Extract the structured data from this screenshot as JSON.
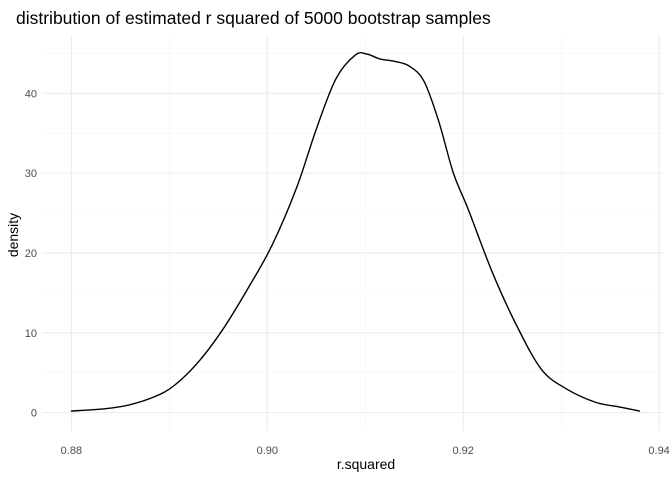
{
  "chart_data": {
    "type": "line",
    "title": "distribution of estimated r squared of 5000 bootstrap samples",
    "xlabel": "r.squared",
    "ylabel": "density",
    "xlim": [
      0.877,
      0.9405
    ],
    "ylim": [
      -2.3,
      47.3
    ],
    "x_ticks": [
      0.88,
      0.9,
      0.92,
      0.94
    ],
    "x_tick_labels": [
      "0.88",
      "0.90",
      "0.92",
      "0.94"
    ],
    "y_ticks": [
      0,
      10,
      20,
      30,
      40
    ],
    "y_tick_labels": [
      "0",
      "10",
      "20",
      "30",
      "40"
    ],
    "grid": true,
    "legend": "none",
    "series": [
      {
        "x": [
          0.88,
          0.8835,
          0.886,
          0.8885,
          0.8905,
          0.893,
          0.8955,
          0.898,
          0.9005,
          0.903,
          0.905,
          0.907,
          0.909,
          0.9102,
          0.9115,
          0.913,
          0.9145,
          0.916,
          0.9175,
          0.919,
          0.9205,
          0.923,
          0.9255,
          0.928,
          0.9305,
          0.9335,
          0.936,
          0.938
        ],
        "y": [
          0.2,
          0.5,
          1.0,
          2.0,
          3.4,
          6.4,
          10.5,
          15.5,
          21.0,
          28.2,
          35.5,
          41.8,
          44.8,
          44.9,
          44.3,
          44.0,
          43.4,
          41.5,
          36.5,
          30.0,
          25.5,
          17.5,
          10.8,
          5.4,
          3.0,
          1.3,
          0.7,
          0.2
        ]
      }
    ]
  }
}
